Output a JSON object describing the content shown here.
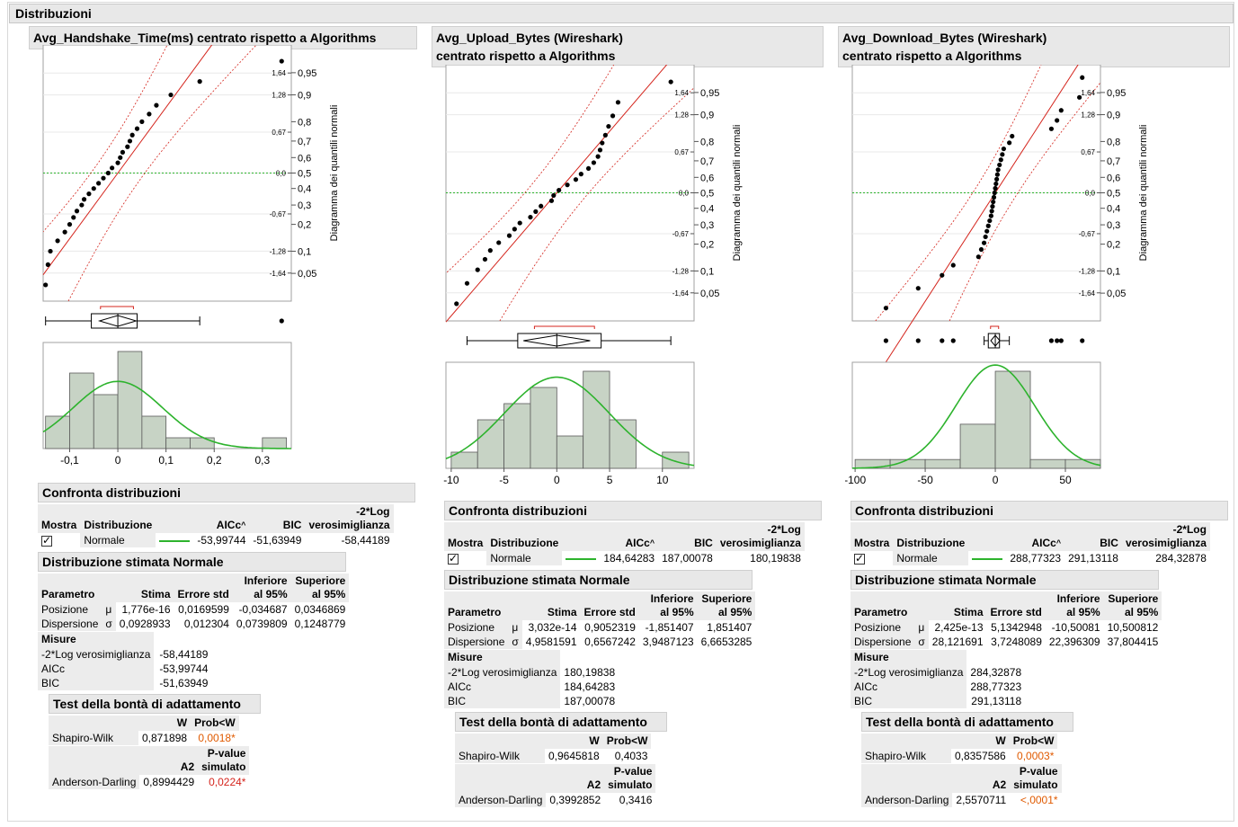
{
  "title": "Distribuzioni",
  "panels": [
    {
      "title_line1": "Avg_Handshake_Time(ms) centrato rispetto a Algorithms",
      "title_line2": "",
      "qq_axis_title": "Diagramma dei quantili normali",
      "hist_ticks": [
        "-0,1",
        "0",
        "0,1",
        "0,2",
        "0,3"
      ],
      "compare": {
        "header": "Confronta distribuzioni",
        "col_show": "Mostra",
        "col_dist": "Distribuzione",
        "col_aicc": "AICc",
        "col_bic": "BIC",
        "col_ll1": "-2*Log",
        "col_ll2": "verosimiglianza",
        "row": {
          "name": "Normale",
          "aicc": "-53,99744",
          "bic": "-51,63949",
          "ll": "-58,44189"
        }
      },
      "fit": {
        "header": "Distribuzione stimata Normale",
        "col_param": "Parametro",
        "col_est": "Stima",
        "col_se": "Errore std",
        "col_lo1": "Inferiore",
        "col_lo2": "al 95%",
        "col_hi1": "Superiore",
        "col_hi2": "al 95%",
        "rows": [
          {
            "name": "Posizione",
            "sym": "μ",
            "est": "1,776e-16",
            "se": "0,0169599",
            "lo": "-0,034687",
            "hi": "0,0346869"
          },
          {
            "name": "Dispersione",
            "sym": "σ",
            "est": "0,0928933",
            "se": "0,012304",
            "lo": "0,0739809",
            "hi": "0,1248779"
          }
        ],
        "measures_label": "Misure",
        "measures": [
          {
            "name": "-2*Log verosimiglianza",
            "val": "-58,44189"
          },
          {
            "name": "AICc",
            "val": "-53,99744"
          },
          {
            "name": "BIC",
            "val": "-51,63949"
          }
        ]
      },
      "gof": {
        "header": "Test della bontà di adattamento",
        "col_w": "W",
        "col_p": "Prob<W",
        "sw_name": "Shapiro-Wilk",
        "sw_w": "0,871898",
        "sw_p": "0,0018*",
        "col_a2": "A2",
        "col_pv1": "P-value",
        "col_pv2": "simulato",
        "ad_name": "Anderson-Darling",
        "ad_a2": "0,8994429",
        "ad_p": "0,0224*"
      }
    },
    {
      "title_line1": "Avg_Upload_Bytes (Wireshark)",
      "title_line2": "centrato rispetto a Algorithms",
      "qq_axis_title": "Diagramma dei quantili normali",
      "hist_ticks": [
        "-10",
        "-5",
        "0",
        "5",
        "10"
      ],
      "compare": {
        "header": "Confronta distribuzioni",
        "col_show": "Mostra",
        "col_dist": "Distribuzione",
        "col_aicc": "AICc",
        "col_bic": "BIC",
        "col_ll1": "-2*Log",
        "col_ll2": "verosimiglianza",
        "row": {
          "name": "Normale",
          "aicc": "184,64283",
          "bic": "187,00078",
          "ll": "180,19838"
        }
      },
      "fit": {
        "header": "Distribuzione stimata Normale",
        "col_param": "Parametro",
        "col_est": "Stima",
        "col_se": "Errore std",
        "col_lo1": "Inferiore",
        "col_lo2": "al 95%",
        "col_hi1": "Superiore",
        "col_hi2": "al 95%",
        "rows": [
          {
            "name": "Posizione",
            "sym": "μ",
            "est": "3,032e-14",
            "se": "0,9052319",
            "lo": "-1,851407",
            "hi": "1,851407"
          },
          {
            "name": "Dispersione",
            "sym": "σ",
            "est": "4,9581591",
            "se": "0,6567242",
            "lo": "3,9487123",
            "hi": "6,6653285"
          }
        ],
        "measures_label": "Misure",
        "measures": [
          {
            "name": "-2*Log verosimiglianza",
            "val": "180,19838"
          },
          {
            "name": "AICc",
            "val": "184,64283"
          },
          {
            "name": "BIC",
            "val": "187,00078"
          }
        ]
      },
      "gof": {
        "header": "Test della bontà di adattamento",
        "col_w": "W",
        "col_p": "Prob<W",
        "sw_name": "Shapiro-Wilk",
        "sw_w": "0,9645818",
        "sw_p": "0,4033",
        "col_a2": "A2",
        "col_pv1": "P-value",
        "col_pv2": "simulato",
        "ad_name": "Anderson-Darling",
        "ad_a2": "0,3992852",
        "ad_p": "0,3416"
      }
    },
    {
      "title_line1": "Avg_Download_Bytes (Wireshark)",
      "title_line2": "centrato rispetto a Algorithms",
      "qq_axis_title": "Diagramma dei quantili normali",
      "hist_ticks": [
        "-100",
        "-50",
        "0",
        "50"
      ],
      "compare": {
        "header": "Confronta distribuzioni",
        "col_show": "Mostra",
        "col_dist": "Distribuzione",
        "col_aicc": "AICc",
        "col_bic": "BIC",
        "col_ll1": "-2*Log",
        "col_ll2": "verosimiglianza",
        "row": {
          "name": "Normale",
          "aicc": "288,77323",
          "bic": "291,13118",
          "ll": "284,32878"
        }
      },
      "fit": {
        "header": "Distribuzione stimata Normale",
        "col_param": "Parametro",
        "col_est": "Stima",
        "col_se": "Errore std",
        "col_lo1": "Inferiore",
        "col_lo2": "al 95%",
        "col_hi1": "Superiore",
        "col_hi2": "al 95%",
        "rows": [
          {
            "name": "Posizione",
            "sym": "μ",
            "est": "2,425e-13",
            "se": "5,1342948",
            "lo": "-10,50081",
            "hi": "10,500812"
          },
          {
            "name": "Dispersione",
            "sym": "σ",
            "est": "28,121691",
            "se": "3,7248089",
            "lo": "22,396309",
            "hi": "37,804415"
          }
        ],
        "measures_label": "Misure",
        "measures": [
          {
            "name": "-2*Log verosimiglianza",
            "val": "284,32878"
          },
          {
            "name": "AICc",
            "val": "288,77323"
          },
          {
            "name": "BIC",
            "val": "291,13118"
          }
        ]
      },
      "gof": {
        "header": "Test della bontà di adattamento",
        "col_w": "W",
        "col_p": "Prob<W",
        "sw_name": "Shapiro-Wilk",
        "sw_w": "0,8357586",
        "sw_p": "0,0003*",
        "col_a2": "A2",
        "col_pv1": "P-value",
        "col_pv2": "simulato",
        "ad_name": "Anderson-Darling",
        "ad_a2": "2,5570711",
        "ad_p": "<,0001*"
      }
    }
  ],
  "qq_ticks": {
    "z": [
      "1,64",
      "1,28",
      "0,67",
      "0,0",
      "-0,67",
      "-1,28",
      "-1,64"
    ],
    "p": [
      "0,95",
      "0,9",
      "0,8",
      "0,7",
      "0,6",
      "0,5",
      "0,4",
      "0,3",
      "0,2",
      "0,1",
      "0,05"
    ]
  }
}
